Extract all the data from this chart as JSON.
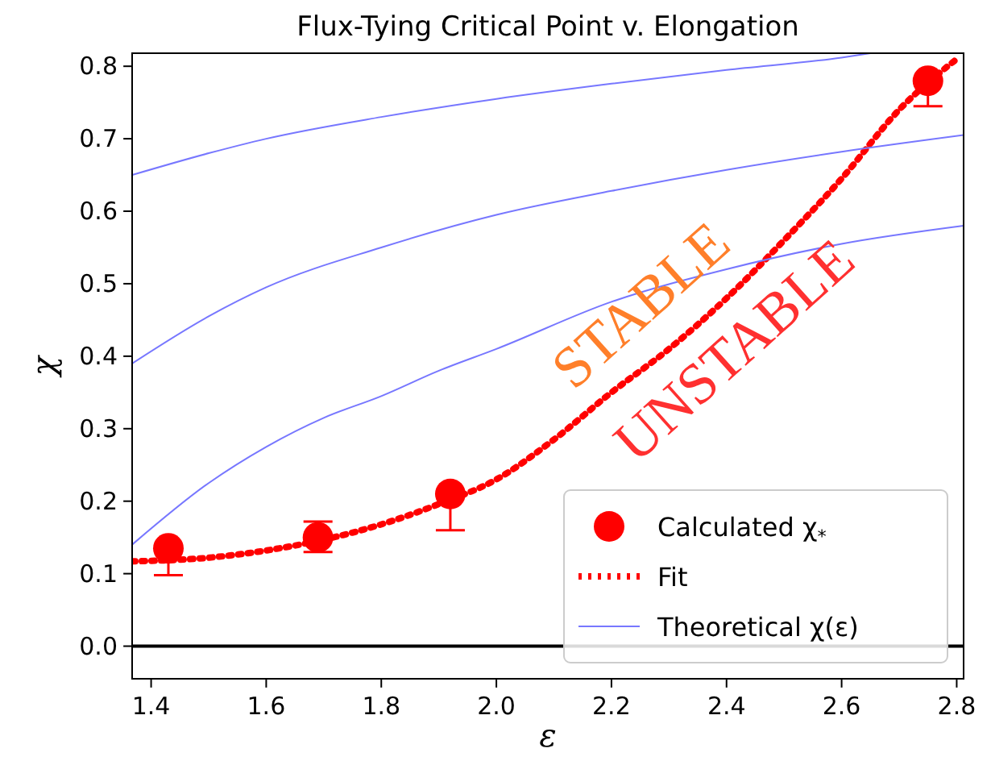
{
  "chart_data": {
    "type": "scatter",
    "title": "Flux-Tying Critical Point v. Elongation",
    "xlabel": "ε",
    "ylabel": "χ",
    "xlim": [
      1.367,
      2.812
    ],
    "ylim": [
      -0.045,
      0.818
    ],
    "xticks": [
      1.4,
      1.6,
      1.8,
      {
        "value": 2.0,
        "label": "2.0"
      },
      2.2,
      2.4,
      2.6,
      2.8
    ],
    "yticks": [
      {
        "value": 0,
        "label": "0.0"
      },
      0.1,
      0.2,
      0.3,
      0.4,
      0.5,
      0.6,
      0.7,
      0.8
    ],
    "grid": false,
    "legend": "bottom right",
    "annotations": [
      "STABLE",
      "UNSTABLE"
    ],
    "ref_lines": [
      {
        "axis": "y",
        "value": 0,
        "color": "#000000"
      }
    ],
    "series": [
      {
        "name": "Calculated χ$_{*}$",
        "type": "scatter",
        "color": "#ff0000",
        "marker": "circle",
        "x": [
          1.43,
          1.69,
          1.92,
          2.75
        ],
        "values": [
          0.135,
          0.15,
          0.21,
          0.78
        ],
        "errors": [
          [
            0.098,
            0.135
          ],
          [
            0.13,
            0.172
          ],
          [
            0.16,
            0.21
          ],
          [
            0.745,
            0.78
          ]
        ]
      },
      {
        "name": "Fit",
        "type": "line",
        "color": "#ff0000",
        "line_style": "dotted",
        "x": [
          1.367,
          1.5,
          1.6,
          1.7,
          1.8,
          1.9,
          2.0,
          2.1,
          2.2,
          2.3,
          2.4,
          2.5,
          2.6,
          2.7,
          2.8
        ],
        "values": [
          0.117,
          0.122,
          0.132,
          0.147,
          0.168,
          0.196,
          0.23,
          0.285,
          0.35,
          0.41,
          0.48,
          0.56,
          0.645,
          0.74,
          0.81
        ]
      },
      {
        "name": "Theoretical χ(ε)",
        "type": "line",
        "color": "#7777ff",
        "line_style": "solid",
        "x": [
          1.367,
          1.5,
          1.6,
          1.8,
          2.0,
          2.2,
          2.4,
          2.6,
          2.65
        ],
        "values": [
          0.65,
          0.68,
          0.7,
          0.73,
          0.755,
          0.776,
          0.795,
          0.812,
          0.818
        ]
      },
      {
        "type": "line",
        "color": "#7777ff",
        "line_style": "solid",
        "x": [
          1.367,
          1.5,
          1.6,
          1.8,
          2.0,
          2.2,
          2.4,
          2.6,
          2.812
        ],
        "values": [
          0.39,
          0.455,
          0.495,
          0.55,
          0.595,
          0.628,
          0.657,
          0.682,
          0.705
        ]
      },
      {
        "type": "line",
        "color": "#7777ff",
        "line_style": "solid",
        "x": [
          1.367,
          1.5,
          1.6,
          1.7,
          1.8,
          1.9,
          2.0,
          2.2,
          2.4,
          2.6,
          2.812
        ],
        "values": [
          0.14,
          0.225,
          0.275,
          0.315,
          0.345,
          0.38,
          0.41,
          0.475,
          0.52,
          0.555,
          0.58
        ]
      }
    ]
  }
}
